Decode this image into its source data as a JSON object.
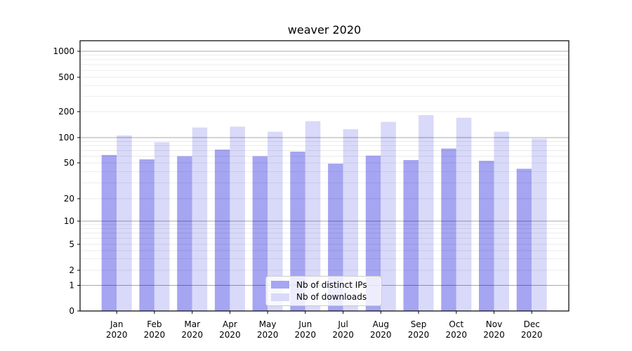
{
  "chart_data": {
    "type": "bar",
    "title": "weaver 2020",
    "categories": [
      "Jan",
      "Feb",
      "Mar",
      "Apr",
      "May",
      "Jun",
      "Jul",
      "Aug",
      "Sep",
      "Oct",
      "Nov",
      "Dec"
    ],
    "category_year": "2020",
    "series": [
      {
        "name": "Nb of distinct IPs",
        "color": "#a5a5f2",
        "values": [
          62,
          55,
          60,
          72,
          60,
          68,
          49,
          61,
          54,
          74,
          53,
          43
        ]
      },
      {
        "name": "Nb of downloads",
        "color": "#d9d9f9",
        "values": [
          106,
          88,
          131,
          134,
          117,
          155,
          125,
          152,
          182,
          170,
          117,
          97
        ]
      }
    ],
    "xlabel": "",
    "ylabel": "",
    "yscale": "symlog",
    "yticks": [
      0,
      1,
      2,
      5,
      10,
      20,
      50,
      100,
      200,
      500,
      1000
    ],
    "ylim": [
      0,
      1340
    ],
    "grid": "both",
    "legend_position": "lower center",
    "colors": {
      "axis": "#000000",
      "major_grid": "#aaaaaa",
      "minor_grid": "#ebebeb",
      "text": "#000000"
    }
  }
}
